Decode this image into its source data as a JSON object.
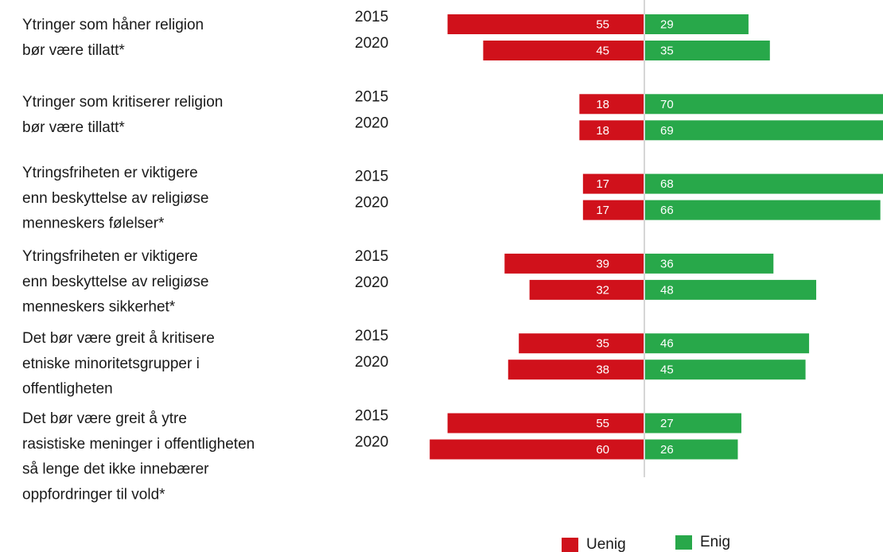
{
  "chart_data": {
    "type": "diverging_bar",
    "categories": [
      [
        "Ytringer som håner religion",
        "bør være tillatt*"
      ],
      [
        "Ytringer som kritiserer religion",
        "bør være tillatt*"
      ],
      [
        "Ytringsfriheten er viktigere",
        "enn beskyttelse av religiøse",
        "menneskers følelser*"
      ],
      [
        "Ytringsfriheten er viktigere",
        "enn beskyttelse av religiøse",
        "menneskers sikkerhet*"
      ],
      [
        "Det bør være greit å kritisere",
        "etniske minoritetsgrupper i",
        "offentligheten"
      ],
      [
        "Det bør være greit å ytre",
        "rasistiske meninger i offentligheten",
        "så lenge det ikke innebærer",
        "oppfordringer til vold*"
      ]
    ],
    "years": [
      "2015",
      "2020"
    ],
    "series": [
      {
        "name": "Uenig",
        "color": "#d0111b",
        "values": [
          [
            55,
            45
          ],
          [
            18,
            18
          ],
          [
            17,
            17
          ],
          [
            39,
            32
          ],
          [
            35,
            38
          ],
          [
            55,
            60
          ]
        ]
      },
      {
        "name": "Enig",
        "color": "#28a84a",
        "values": [
          [
            29,
            35
          ],
          [
            70,
            69
          ],
          [
            68,
            66
          ],
          [
            36,
            48
          ],
          [
            46,
            45
          ],
          [
            27,
            26
          ]
        ]
      }
    ]
  }
}
